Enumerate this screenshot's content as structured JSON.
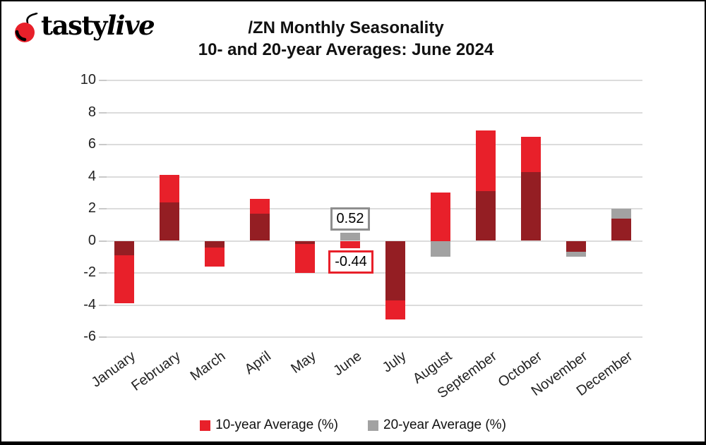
{
  "logo": {
    "brand_bold": "tasty",
    "brand_italic": "live",
    "icon": "cherry-icon"
  },
  "title": {
    "line1": "/ZN Monthly Seasonality",
    "line2": "10- and 20-year Averages: June 2024"
  },
  "colors": {
    "red": "#e8202a",
    "dark_red": "#941e23",
    "gray": "#a2a2a2",
    "gridline": "#dcdcdc",
    "tick": "#c9c9c9",
    "annotation_gray_border": "#8e8e8e",
    "text": "#111111"
  },
  "chart_data": {
    "type": "bar",
    "title": "/ZN Monthly Seasonality",
    "subtitle": "10- and 20-year Averages: June 2024",
    "categories": [
      "January",
      "February",
      "March",
      "April",
      "May",
      "June",
      "July",
      "August",
      "September",
      "October",
      "November",
      "December"
    ],
    "series": [
      {
        "name": "10-year Average (%)",
        "color": "#e8202a",
        "values": [
          -3.9,
          4.1,
          -1.6,
          2.6,
          -2.0,
          -0.44,
          -4.9,
          3.0,
          6.9,
          6.5,
          -0.7,
          1.4
        ]
      },
      {
        "name": "20-year Average (%)",
        "color": "#a2a2a2",
        "values": [
          -0.9,
          2.4,
          -0.4,
          1.7,
          -0.2,
          0.52,
          -3.7,
          -1.0,
          3.1,
          4.3,
          -1.0,
          2.0
        ]
      }
    ],
    "overlap_color": "#941e23",
    "overlap_note": "bars are overlaid at the same x position; where both series cover the same range the fill renders dark red",
    "y_ticks": [
      10,
      8,
      6,
      4,
      2,
      0,
      -2,
      -4,
      -6
    ],
    "ylim": [
      -6,
      10
    ],
    "grid": "horizontal",
    "legend_position": "bottom",
    "annotations": [
      {
        "label": "0.52",
        "month": "June",
        "series": "20-year Average (%)",
        "value": 0.52
      },
      {
        "label": "-0.44",
        "month": "June",
        "series": "10-year Average (%)",
        "value": -0.44
      }
    ]
  }
}
